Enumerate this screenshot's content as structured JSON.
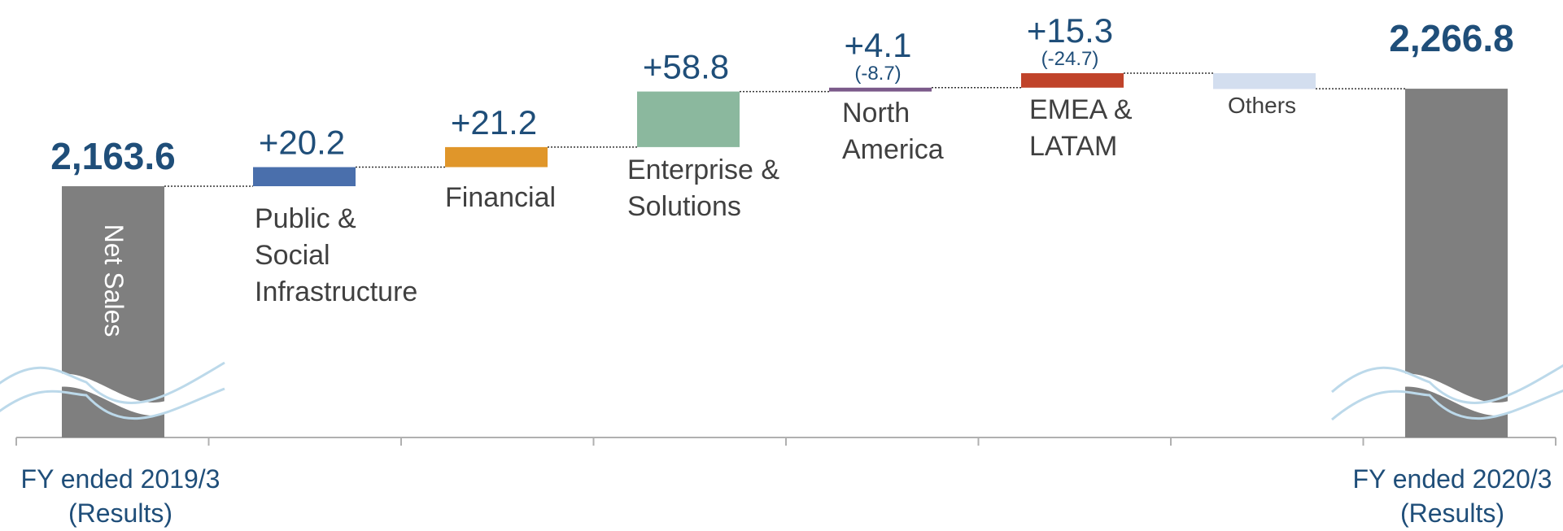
{
  "chart_data": {
    "type": "bar",
    "subtype": "waterfall",
    "start": {
      "value_label": "2,163.6",
      "value": 2163.6,
      "bar_label": "Net Sales",
      "category_lines": [
        "FY ended 2019/3",
        "(Results)"
      ]
    },
    "end": {
      "value_label": "2,266.8",
      "value": 2266.8,
      "category_lines": [
        "FY ended 2020/3",
        "(Results)"
      ]
    },
    "steps": [
      {
        "name_lines": [
          "Public &",
          "Social",
          "Infrastructure"
        ],
        "change": 20.2,
        "value_label": "+20.2",
        "sub_label": "",
        "color": "#4a6fac"
      },
      {
        "name_lines": [
          "Financial"
        ],
        "change": 21.2,
        "value_label": "+21.2",
        "sub_label": "",
        "color": "#e0962a"
      },
      {
        "name_lines": [
          "Enterprise &",
          "Solutions"
        ],
        "change": 58.8,
        "value_label": "+58.8",
        "sub_label": "",
        "color": "#8bb89e"
      },
      {
        "name_lines": [
          "North",
          "America"
        ],
        "change": 4.1,
        "value_label": "+4.1",
        "sub_label": "(-8.7)",
        "color": "#7b5a8a"
      },
      {
        "name_lines": [
          "EMEA &",
          "LATAM"
        ],
        "change": 15.3,
        "value_label": "+15.3",
        "sub_label": "(-24.7)",
        "color": "#c0432a"
      },
      {
        "name_lines": [
          "Others"
        ],
        "change": -16.7,
        "value_label": "",
        "sub_label": "",
        "color": "#d3deef"
      }
    ],
    "axis_break": true,
    "colors": {
      "total_bar": "#7f7f7f",
      "value_text": "#1f4e79",
      "category_text": "#1f4e79",
      "step_name_text": "#404040",
      "connector": "#333333",
      "axis": "#b0b0b0",
      "break_line": "#bcd9ea"
    }
  }
}
